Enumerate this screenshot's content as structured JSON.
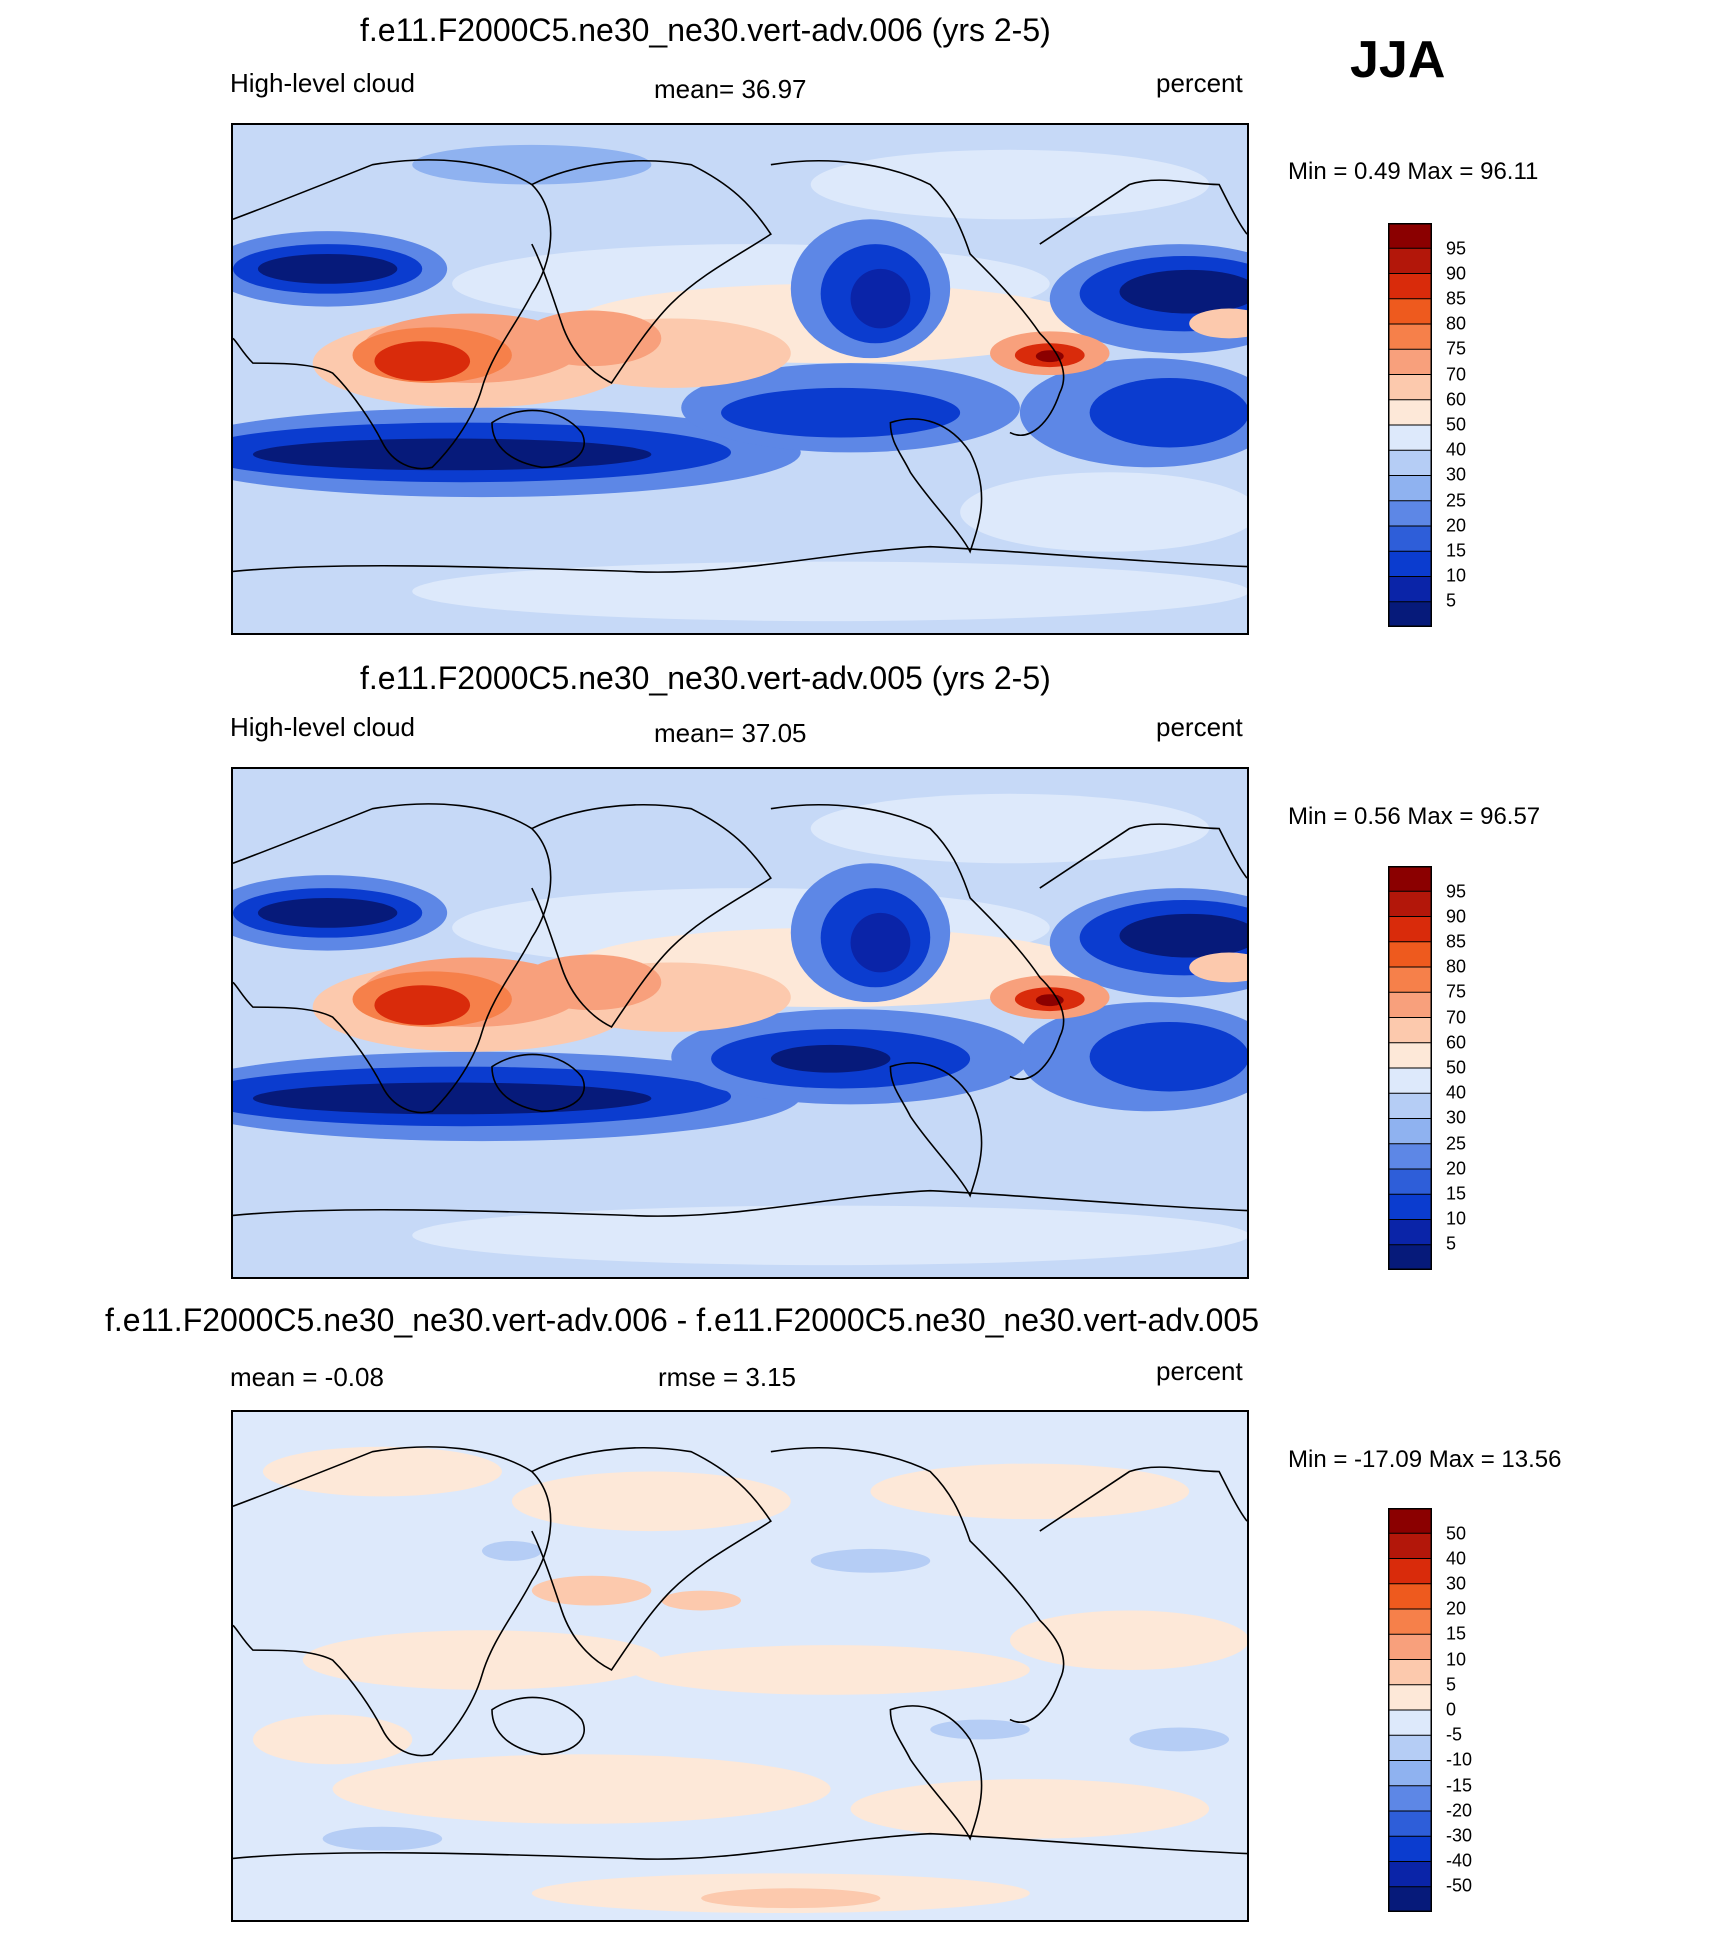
{
  "season": "JJA",
  "panels": [
    {
      "title": "f.e11.F2000C5.ne30_ne30.vert-adv.006 (yrs 2-5)",
      "left_label": "High-level cloud",
      "center_label": "mean=  36.97",
      "right_label": "percent",
      "stats": "Min =    0.49 Max =  96.11",
      "colorbar_labels": [
        "95",
        "90",
        "85",
        "80",
        "75",
        "70",
        "60",
        "50",
        "40",
        "30",
        "25",
        "20",
        "15",
        "10",
        "5"
      ],
      "colorbar_colors": [
        "#8b0000",
        "#b3170a",
        "#d92b0b",
        "#ee5a1e",
        "#f6804a",
        "#f8a07c",
        "#fcc9ad",
        "#fde8d8",
        "#dde9fb",
        "#b5cdf5",
        "#8fb2f0",
        "#5d87e6",
        "#2e5ed9",
        "#0b3ccf",
        "#0a24a8",
        "#061a7a"
      ]
    },
    {
      "title": "f.e11.F2000C5.ne30_ne30.vert-adv.005 (yrs 2-5)",
      "left_label": "High-level cloud",
      "center_label": "mean=  37.05",
      "right_label": "percent",
      "stats": "Min =    0.56 Max =  96.57",
      "colorbar_labels": [
        "95",
        "90",
        "85",
        "80",
        "75",
        "70",
        "60",
        "50",
        "40",
        "30",
        "25",
        "20",
        "15",
        "10",
        "5"
      ],
      "colorbar_colors": [
        "#8b0000",
        "#b3170a",
        "#d92b0b",
        "#ee5a1e",
        "#f6804a",
        "#f8a07c",
        "#fcc9ad",
        "#fde8d8",
        "#dde9fb",
        "#b5cdf5",
        "#8fb2f0",
        "#5d87e6",
        "#2e5ed9",
        "#0b3ccf",
        "#0a24a8",
        "#061a7a"
      ]
    },
    {
      "title": "f.e11.F2000C5.ne30_ne30.vert-adv.006 - f.e11.F2000C5.ne30_ne30.vert-adv.005",
      "left_label": "mean =  -0.08",
      "center_label": "rmse =   3.15",
      "right_label": "percent",
      "stats": "Min = -17.09 Max =  13.56",
      "colorbar_labels": [
        "50",
        "40",
        "30",
        "20",
        "15",
        "10",
        "5",
        "0",
        "-5",
        "-10",
        "-15",
        "-20",
        "-30",
        "-40",
        "-50"
      ],
      "colorbar_colors": [
        "#8b0000",
        "#b3170a",
        "#d92b0b",
        "#ee5a1e",
        "#f6804a",
        "#f8a07c",
        "#fcc9ad",
        "#fde8d8",
        "#dde9fb",
        "#b5cdf5",
        "#8fb2f0",
        "#5d87e6",
        "#2e5ed9",
        "#0b3ccf",
        "#0a24a8",
        "#061a7a"
      ]
    }
  ],
  "chart_data": [
    {
      "type": "heatmap",
      "title": "f.e11.F2000C5.ne30_ne30.vert-adv.006 (yrs 2-5)",
      "variable": "High-level cloud",
      "units": "percent",
      "season": "JJA",
      "mean": 36.97,
      "min": 0.49,
      "max": 96.11,
      "contour_levels": [
        5,
        10,
        15,
        20,
        25,
        30,
        40,
        50,
        60,
        70,
        75,
        80,
        85,
        90,
        95
      ]
    },
    {
      "type": "heatmap",
      "title": "f.e11.F2000C5.ne30_ne30.vert-adv.005 (yrs 2-5)",
      "variable": "High-level cloud",
      "units": "percent",
      "season": "JJA",
      "mean": 37.05,
      "min": 0.56,
      "max": 96.57,
      "contour_levels": [
        5,
        10,
        15,
        20,
        25,
        30,
        40,
        50,
        60,
        70,
        75,
        80,
        85,
        90,
        95
      ]
    },
    {
      "type": "heatmap",
      "title": "f.e11.F2000C5.ne30_ne30.vert-adv.006 - f.e11.F2000C5.ne30_ne30.vert-adv.005",
      "units": "percent",
      "season": "JJA",
      "mean": -0.08,
      "rmse": 3.15,
      "min": -17.09,
      "max": 13.56,
      "contour_levels": [
        -50,
        -40,
        -30,
        -20,
        -15,
        -10,
        -5,
        0,
        5,
        10,
        15,
        20,
        30,
        40,
        50
      ]
    }
  ]
}
